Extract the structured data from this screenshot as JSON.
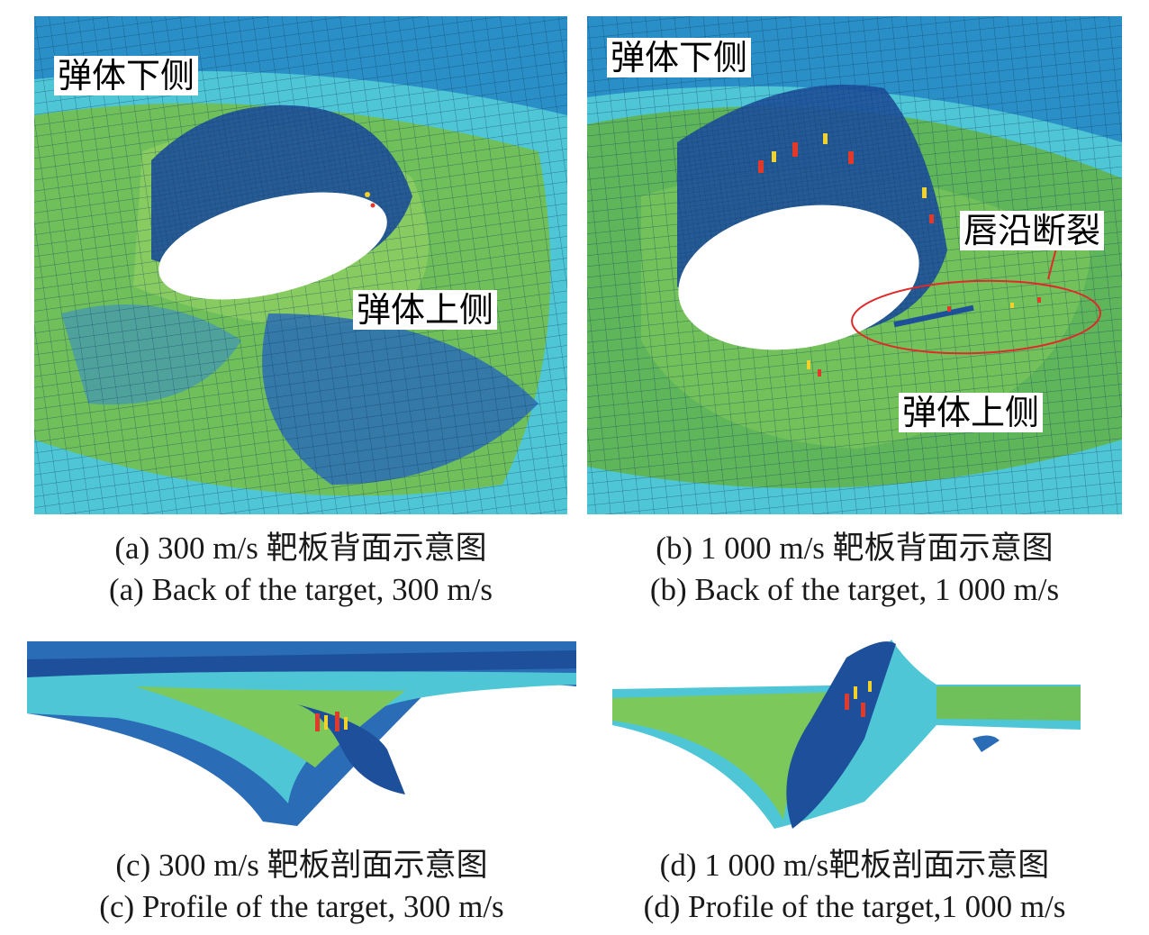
{
  "panels": {
    "a": {
      "labels": {
        "lower": "弹体下侧",
        "upper": "弹体上侧"
      },
      "caption_cn": "(a) 300 m/s 靶板背面示意图",
      "caption_en": "(a) Back of the target, 300 m/s"
    },
    "b": {
      "labels": {
        "lower": "弹体下侧",
        "upper": "弹体上侧",
        "fracture": "唇沿断裂"
      },
      "caption_cn": "(b) 1 000 m/s 靶板背面示意图",
      "caption_en": "(b) Back of the target, 1 000 m/s"
    },
    "c": {
      "caption_cn": "(c) 300 m/s 靶板剖面示意图",
      "caption_en": "(c) Profile of the target, 300 m/s"
    },
    "d": {
      "caption_cn": "(d) 1 000 m/s靶板剖面示意图",
      "caption_en": "(d) Profile of the target,1 000 m/s"
    }
  },
  "colors": {
    "mesh_blue": "#2a8fc6",
    "mesh_cyan": "#4fc6d6",
    "mesh_green": "#6fbf5a",
    "mesh_dark": "#1a3f8f",
    "highlight_red": "#e23a2a",
    "highlight_yellow": "#f2d22a",
    "ellipse_red": "#e02a2a"
  }
}
